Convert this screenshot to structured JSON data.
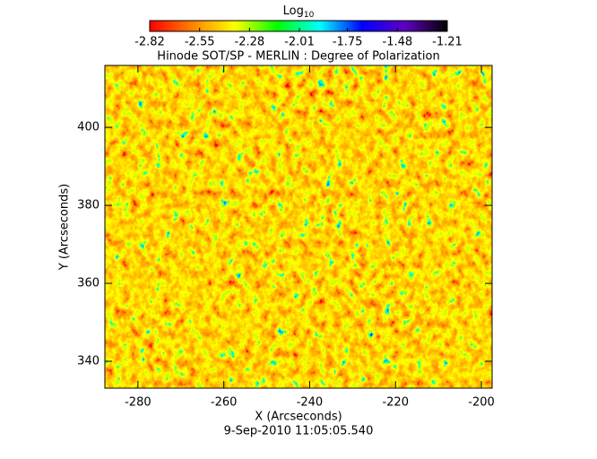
{
  "chart_data": {
    "type": "heatmap",
    "title": "Hinode SOT/SP - MERLIN : Degree of Polarization",
    "subtitle": "9-Sep-2010 11:05:05.540",
    "x_label": "X (Arcseconds)",
    "y_label": "Y (Arcseconds)",
    "xlim": [
      -287.7,
      -197.5
    ],
    "ylim": [
      333.1,
      415.9
    ],
    "xticks": [
      -280,
      -260,
      -240,
      -220,
      -200
    ],
    "yticks": [
      340,
      360,
      380,
      400
    ],
    "colorbar_label": "Log",
    "colorbar_label_sub": "10",
    "colorbar_lim": [
      -2.82,
      -1.21
    ],
    "colorbar_ticks": [
      -2.82,
      -2.55,
      -2.28,
      -2.01,
      -1.75,
      -1.48,
      -1.21
    ],
    "colormap": [
      "#ff0000",
      "#ff8000",
      "#ffff00",
      "#00ff00",
      "#00ffff",
      "#0000ff",
      "#6000c0",
      "#000000"
    ]
  }
}
